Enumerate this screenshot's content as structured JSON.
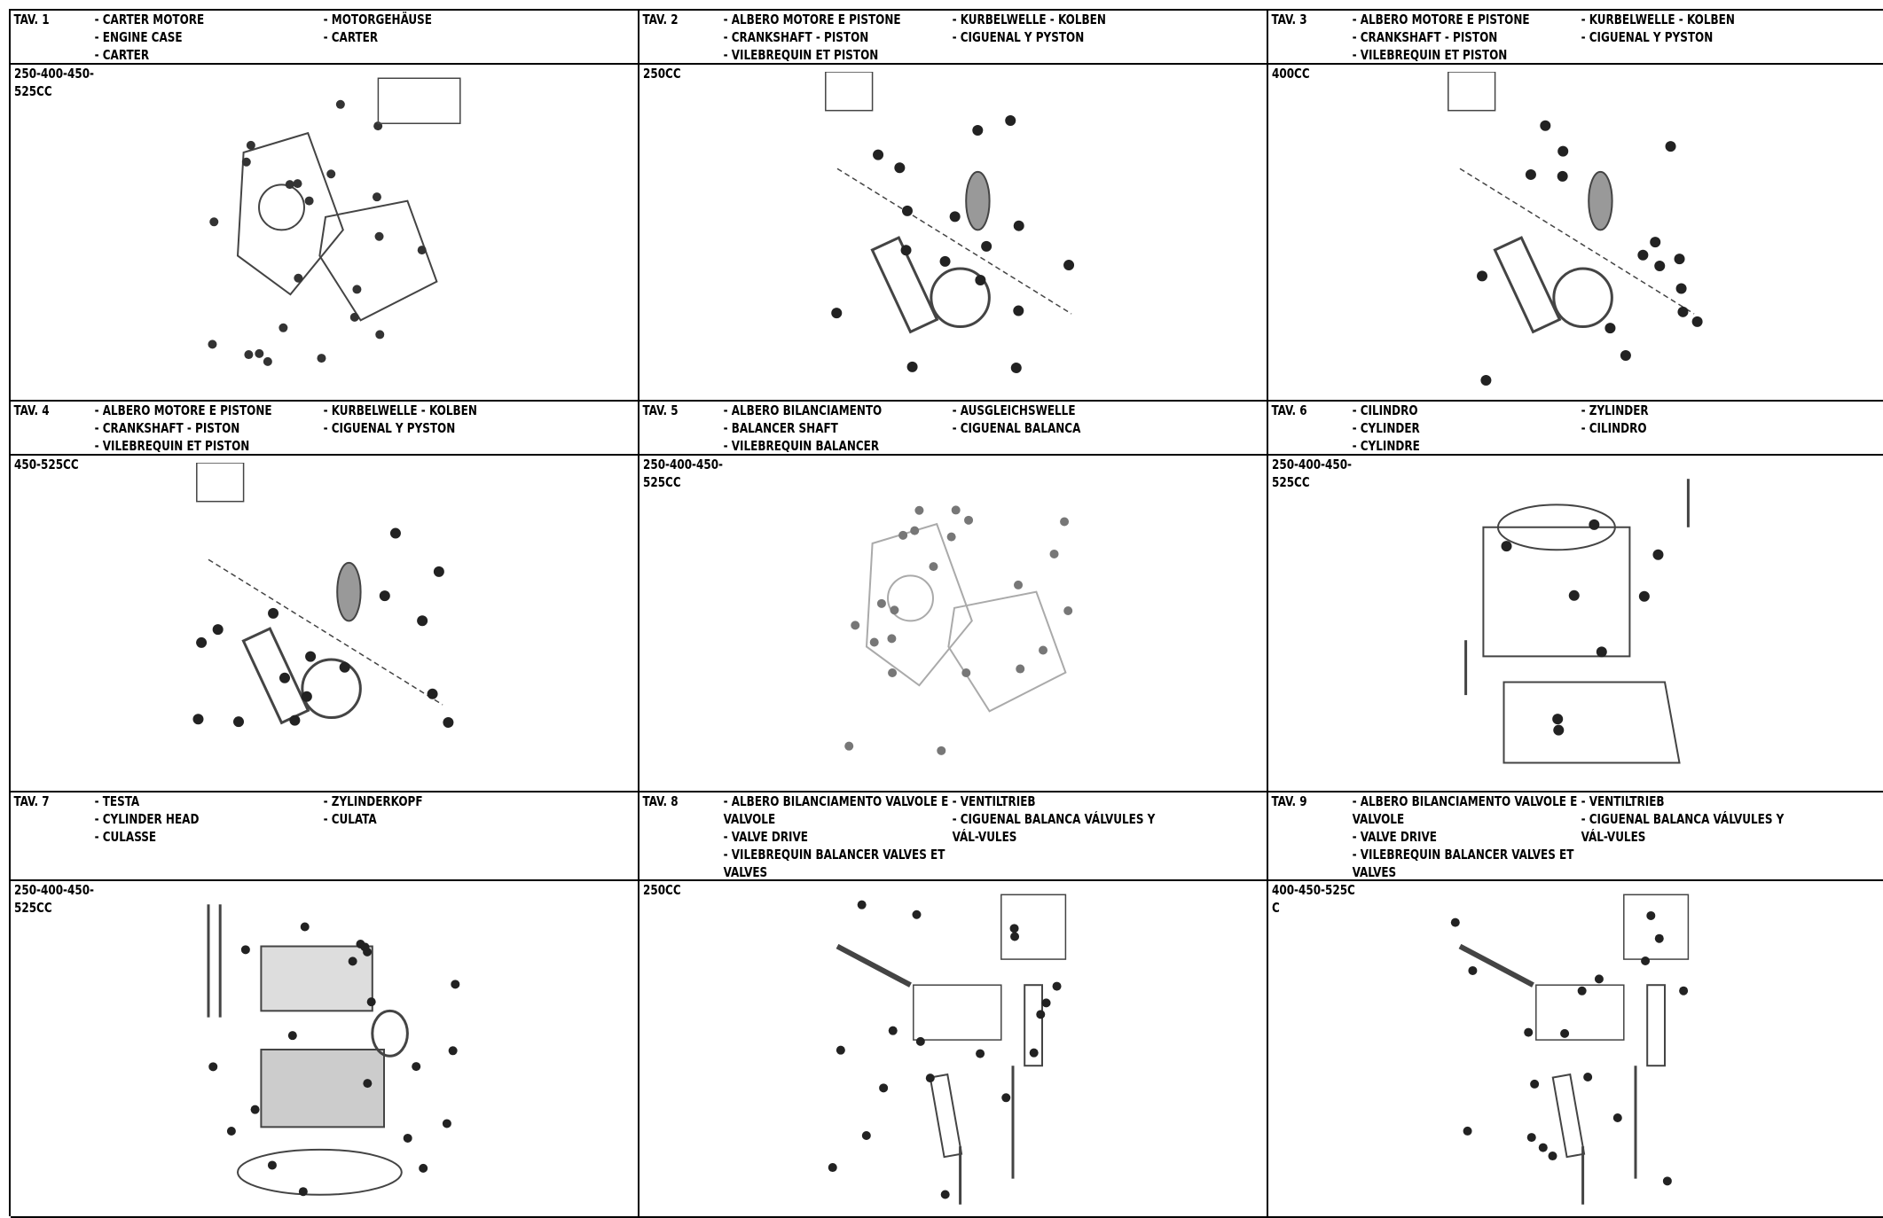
{
  "panels": [
    {
      "tav": "TAV. 1",
      "col_a": [
        "- CARTER MOTORE",
        "- ENGINE CASE",
        "- CARTER"
      ],
      "col_b": [
        "- MOTORGEHÄUSE",
        "- CARTER"
      ],
      "cc": "250-400-450-525CC",
      "figure": "engine-case-exploded-view"
    },
    {
      "tav": "TAV. 2",
      "col_a": [
        "- ALBERO MOTORE E PISTONE",
        "- CRANKSHAFT - PISTON",
        "- VILEBREQUIN ET PISTON"
      ],
      "col_b": [
        "- KURBELWELLE - KOLBEN",
        "- CIGUENAL Y PYSTON"
      ],
      "cc": "250CC",
      "figure": "crankshaft-piston-exploded-view"
    },
    {
      "tav": "TAV. 3",
      "col_a": [
        "- ALBERO MOTORE E PISTONE",
        "- CRANKSHAFT - PISTON",
        "- VILEBREQUIN ET PISTON"
      ],
      "col_b": [
        "- KURBELWELLE - KOLBEN",
        "- CIGUENAL Y PYSTON"
      ],
      "cc": "400CC",
      "figure": "crankshaft-piston-exploded-view"
    },
    {
      "tav": "TAV. 4",
      "col_a": [
        "- ALBERO MOTORE E PISTONE",
        "- CRANKSHAFT - PISTON",
        "- VILEBREQUIN ET PISTON"
      ],
      "col_b": [
        "- KURBELWELLE - KOLBEN",
        "- CIGUENAL Y PYSTON"
      ],
      "cc": "450-525CC",
      "figure": "crankshaft-piston-exploded-view"
    },
    {
      "tav": "TAV. 5",
      "col_a": [
        "- ALBERO BILANCIAMENTO",
        "- BALANCER SHAFT",
        "- VILEBREQUIN BALANCER"
      ],
      "col_b": [
        "- AUSGLEICHSWELLE",
        "- CIGUENAL BALANCA"
      ],
      "cc": "250-400-450-525CC",
      "figure": "balancer-shaft-exploded-view"
    },
    {
      "tav": "TAV. 6",
      "col_a": [
        "- CILINDRO",
        "- CYLINDER",
        "- CYLINDRE"
      ],
      "col_b": [
        "- ZYLINDER",
        "- CILINDRO"
      ],
      "cc": "250-400-450-525CC",
      "figure": "cylinder-exploded-view"
    },
    {
      "tav": "TAV. 7",
      "col_a": [
        "- TESTA",
        "- CYLINDER HEAD",
        "- CULASSE"
      ],
      "col_b": [
        "- ZYLINDERKOPF",
        "- CULATA"
      ],
      "cc": "250-400-450-525CC",
      "figure": "cylinder-head-exploded-view"
    },
    {
      "tav": "TAV. 8",
      "col_a": [
        "- ALBERO BILANCIAMENTO VALVOLE E VALVOLE",
        "- VALVE DRIVE",
        "- VILEBREQUIN BALANCER VALVES ET VALVES"
      ],
      "col_b": [
        "- VENTILTRIEB",
        "- CIGUENAL BALANCA VÁLVULES Y VÁL-VULES"
      ],
      "cc": "250CC",
      "figure": "valve-drive-exploded-view"
    },
    {
      "tav": "TAV. 9",
      "col_a": [
        "- ALBERO BILANCIAMENTO VALVOLE E VALVOLE",
        "- VALVE DRIVE",
        "- VILEBREQUIN BALANCER VALVES ET VALVES"
      ],
      "col_b": [
        "- VENTILTRIEB",
        "- CIGUENAL BALANCA VÁLVULES Y VÁL-VULES"
      ],
      "cc": "400-450-525CC",
      "figure": "valve-drive-exploded-view"
    }
  ]
}
